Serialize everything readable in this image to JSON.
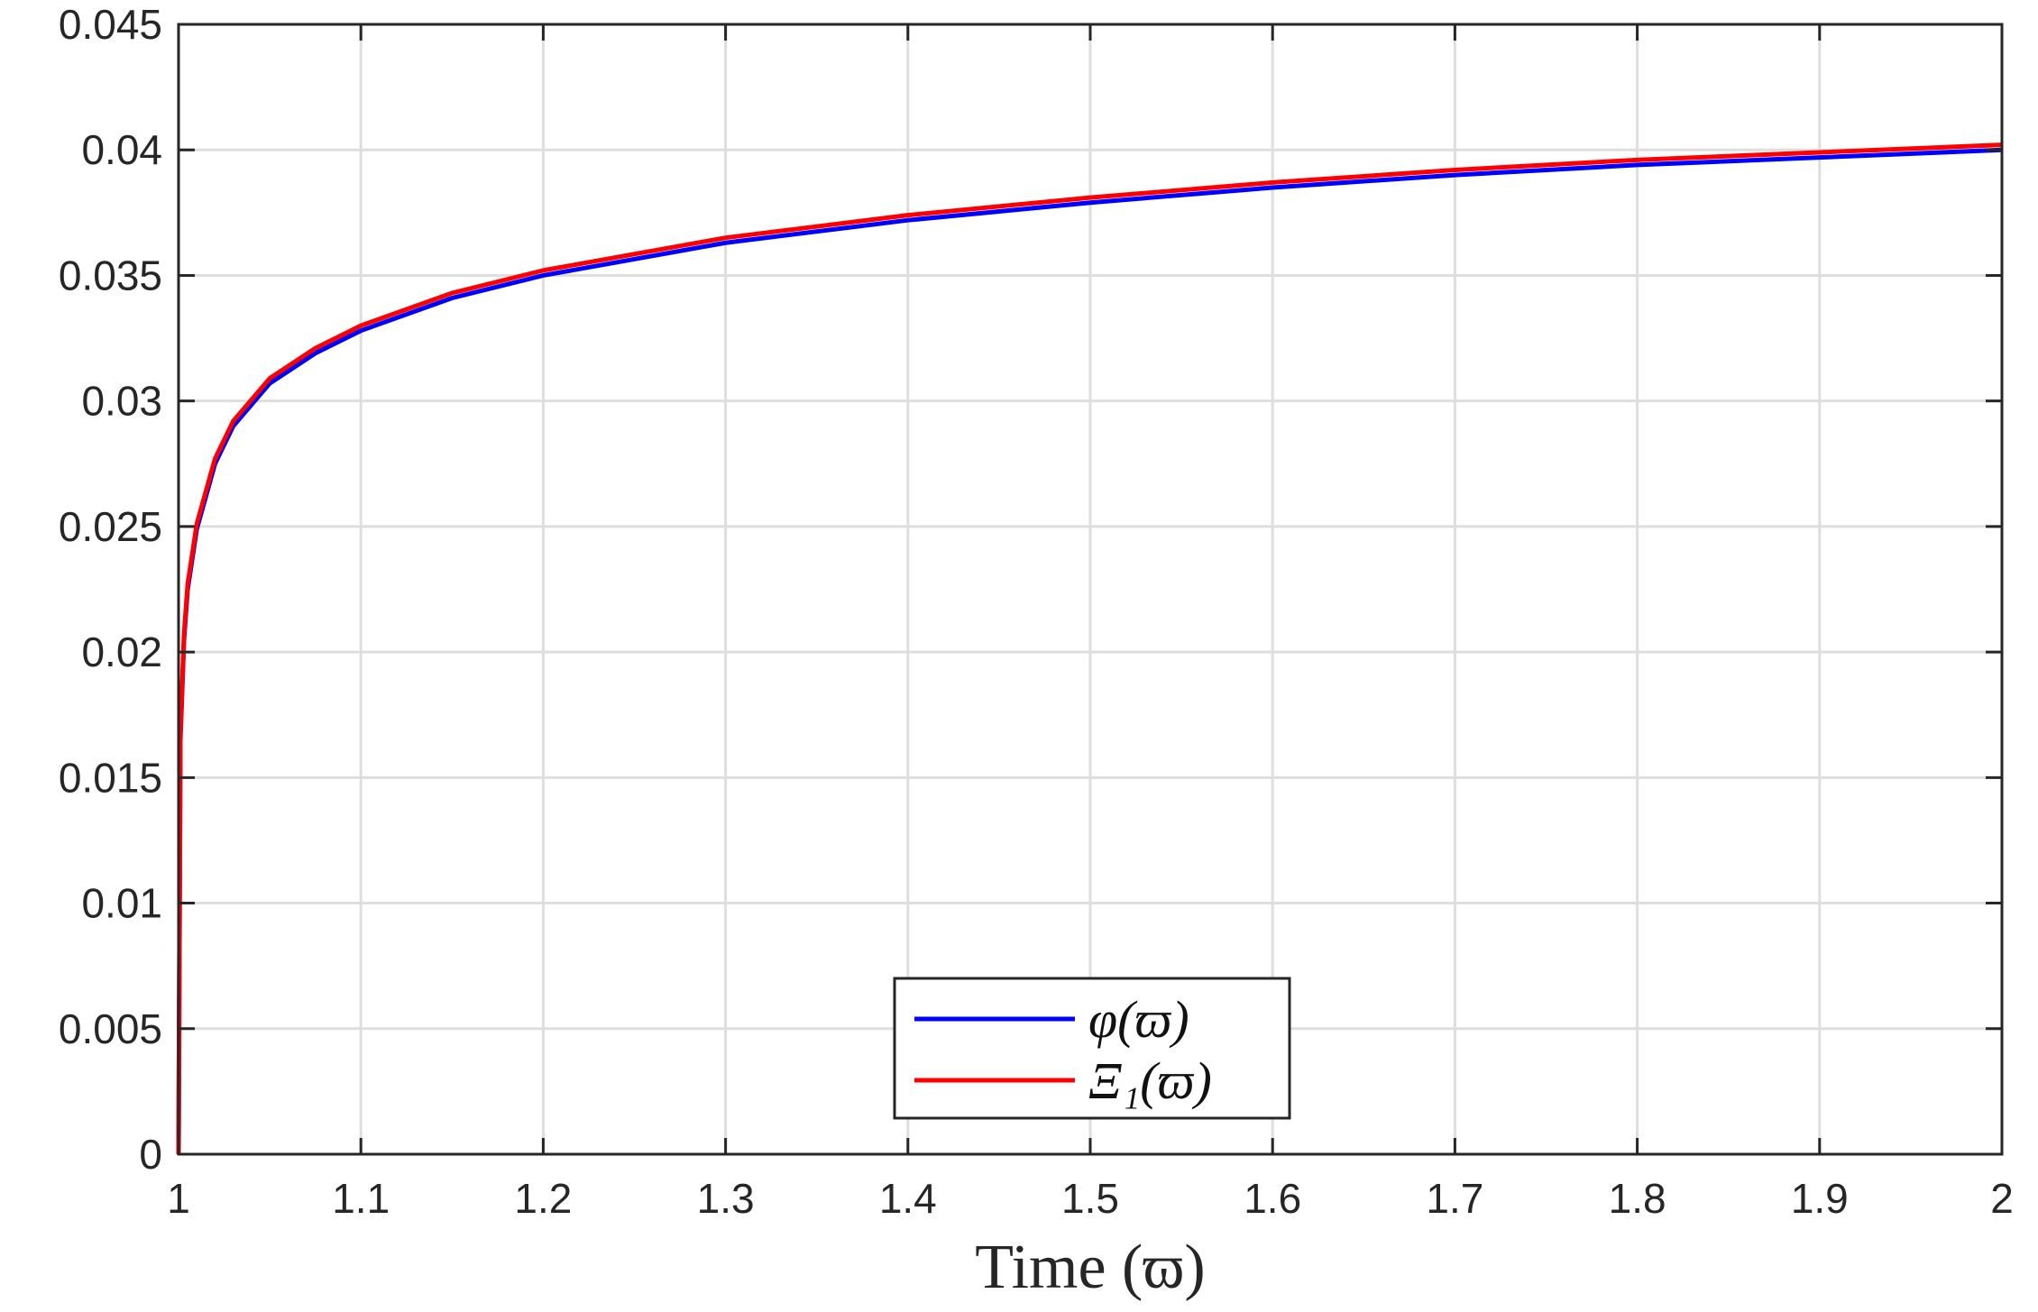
{
  "chart_data": {
    "type": "line",
    "xlabel": "Time (ϖ)",
    "ylabel": "",
    "xlim": [
      1,
      2
    ],
    "ylim": [
      0,
      0.045
    ],
    "grid": true,
    "legend_position": "bottom-center",
    "x_ticks": [
      {
        "value": 1,
        "label": "1"
      },
      {
        "value": 1.1,
        "label": "1.1"
      },
      {
        "value": 1.2,
        "label": "1.2"
      },
      {
        "value": 1.3,
        "label": "1.3"
      },
      {
        "value": 1.4,
        "label": "1.4"
      },
      {
        "value": 1.5,
        "label": "1.5"
      },
      {
        "value": 1.6,
        "label": "1.6"
      },
      {
        "value": 1.7,
        "label": "1.7"
      },
      {
        "value": 1.8,
        "label": "1.8"
      },
      {
        "value": 1.9,
        "label": "1.9"
      },
      {
        "value": 2,
        "label": "2"
      }
    ],
    "y_ticks": [
      {
        "value": 0,
        "label": "0"
      },
      {
        "value": 0.005,
        "label": "0.005"
      },
      {
        "value": 0.01,
        "label": "0.01"
      },
      {
        "value": 0.015,
        "label": "0.015"
      },
      {
        "value": 0.02,
        "label": "0.02"
      },
      {
        "value": 0.025,
        "label": "0.025"
      },
      {
        "value": 0.03,
        "label": "0.03"
      },
      {
        "value": 0.035,
        "label": "0.035"
      },
      {
        "value": 0.04,
        "label": "0.04"
      },
      {
        "value": 0.045,
        "label": "0.045"
      }
    ],
    "series": [
      {
        "name": "φ(ϖ)",
        "color": "#0000ff",
        "x": [
          1.0,
          1.001,
          1.003,
          1.005,
          1.01,
          1.02,
          1.03,
          1.05,
          1.075,
          1.1,
          1.15,
          1.2,
          1.3,
          1.4,
          1.5,
          1.6,
          1.7,
          1.8,
          1.9,
          2.0
        ],
        "y": [
          0.0,
          0.0165,
          0.0205,
          0.0225,
          0.0249,
          0.0275,
          0.029,
          0.0307,
          0.0319,
          0.0328,
          0.0341,
          0.035,
          0.0363,
          0.0372,
          0.0379,
          0.0385,
          0.039,
          0.0394,
          0.0397,
          0.04
        ]
      },
      {
        "name": "Ξ₁(ϖ)",
        "color": "#ff0000",
        "x": [
          1.0,
          1.001,
          1.003,
          1.005,
          1.01,
          1.02,
          1.03,
          1.05,
          1.075,
          1.1,
          1.15,
          1.2,
          1.3,
          1.4,
          1.5,
          1.6,
          1.7,
          1.8,
          1.9,
          2.0
        ],
        "y": [
          0.0,
          0.0167,
          0.0207,
          0.0227,
          0.0251,
          0.0277,
          0.0292,
          0.0309,
          0.0321,
          0.033,
          0.0343,
          0.0352,
          0.0365,
          0.0374,
          0.0381,
          0.0387,
          0.0392,
          0.0396,
          0.0399,
          0.0402
        ]
      }
    ]
  }
}
